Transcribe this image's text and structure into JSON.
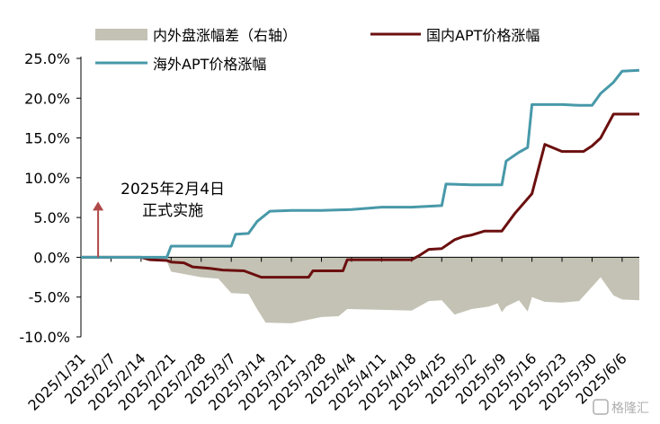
{
  "chart_data": {
    "type": "line",
    "title": "",
    "xlabel": "",
    "ylabel": "",
    "ylim": [
      -10,
      25
    ],
    "yticks": [
      -10,
      -5,
      0,
      5,
      10,
      15,
      20,
      25
    ],
    "ytick_labels": [
      "-10.0%",
      "-5.0%",
      "0.0%",
      "5.0%",
      "10.0%",
      "15.0%",
      "20.0%",
      "25.0%"
    ],
    "x_tick_labels": [
      "2025/1/31",
      "2025/2/7",
      "2025/2/14",
      "2025/2/21",
      "2025/2/28",
      "2025/3/7",
      "2025/3/14",
      "2025/3/21",
      "2025/3/28",
      "2025/4/4",
      "2025/4/11",
      "2025/4/18",
      "2025/4/25",
      "2025/5/2",
      "2025/5/9",
      "2025/5/16",
      "2025/5/23",
      "2025/5/30",
      "2025/6/6"
    ],
    "grid": false,
    "legend_position": "top",
    "series": [
      {
        "name": "内外盘涨幅差（右轴）",
        "kind": "area",
        "color": "#c4c2b4",
        "points": [
          [
            "2025/1/31",
            0
          ],
          [
            "2025/2/14",
            0
          ],
          [
            "2025/2/17",
            -0.3
          ],
          [
            "2025/2/20",
            -0.5
          ],
          [
            "2025/2/21",
            -1.8
          ],
          [
            "2025/2/28",
            -2.5
          ],
          [
            "2025/3/4",
            -2.7
          ],
          [
            "2025/3/7",
            -4.5
          ],
          [
            "2025/3/11",
            -4.6
          ],
          [
            "2025/3/13",
            -6.5
          ],
          [
            "2025/3/15",
            -8.2
          ],
          [
            "2025/3/21",
            -8.3
          ],
          [
            "2025/3/28",
            -7.5
          ],
          [
            "2025/4/1",
            -7.4
          ],
          [
            "2025/4/3",
            -6.5
          ],
          [
            "2025/4/11",
            -6.6
          ],
          [
            "2025/4/18",
            -6.7
          ],
          [
            "2025/4/22",
            -5.5
          ],
          [
            "2025/4/25",
            -5.4
          ],
          [
            "2025/4/28",
            -7.2
          ],
          [
            "2025/5/2",
            -6.5
          ],
          [
            "2025/5/6",
            -6.2
          ],
          [
            "2025/5/8",
            -5.8
          ],
          [
            "2025/5/9",
            -6.9
          ],
          [
            "2025/5/10",
            -6.2
          ],
          [
            "2025/5/13",
            -5.4
          ],
          [
            "2025/5/15",
            -6.8
          ],
          [
            "2025/5/16",
            -5.0
          ],
          [
            "2025/5/19",
            -5.6
          ],
          [
            "2025/5/23",
            -5.7
          ],
          [
            "2025/5/27",
            -5.5
          ],
          [
            "2025/5/29",
            -4.3
          ],
          [
            "2025/6/1",
            -2.5
          ],
          [
            "2025/6/4",
            -4.8
          ],
          [
            "2025/6/6",
            -5.3
          ],
          [
            "2025/6/10",
            -5.4
          ]
        ]
      },
      {
        "name": "国内APT价格涨幅",
        "kind": "line",
        "color": "#6b0f0f",
        "points": [
          [
            "2025/1/31",
            0
          ],
          [
            "2025/2/14",
            0
          ],
          [
            "2025/2/16",
            -0.3
          ],
          [
            "2025/2/20",
            -0.4
          ],
          [
            "2025/2/21",
            -0.6
          ],
          [
            "2025/2/24",
            -0.7
          ],
          [
            "2025/2/26",
            -1.2
          ],
          [
            "2025/3/2",
            -1.4
          ],
          [
            "2025/3/5",
            -1.6
          ],
          [
            "2025/3/10",
            -1.7
          ],
          [
            "2025/3/14",
            -2.5
          ],
          [
            "2025/3/21",
            -2.5
          ],
          [
            "2025/3/25",
            -2.5
          ],
          [
            "2025/3/26",
            -1.7
          ],
          [
            "2025/4/2",
            -1.7
          ],
          [
            "2025/4/3",
            -0.3
          ],
          [
            "2025/4/18",
            -0.3
          ],
          [
            "2025/4/20",
            0.3
          ],
          [
            "2025/4/22",
            1.0
          ],
          [
            "2025/4/25",
            1.1
          ],
          [
            "2025/4/28",
            2.2
          ],
          [
            "2025/4/30",
            2.6
          ],
          [
            "2025/5/2",
            2.8
          ],
          [
            "2025/5/5",
            3.3
          ],
          [
            "2025/5/9",
            3.3
          ],
          [
            "2025/5/12",
            5.5
          ],
          [
            "2025/5/16",
            8.0
          ],
          [
            "2025/5/19",
            14.2
          ],
          [
            "2025/5/23",
            13.3
          ],
          [
            "2025/5/28",
            13.3
          ],
          [
            "2025/5/30",
            14.0
          ],
          [
            "2025/6/1",
            15.0
          ],
          [
            "2025/6/4",
            18.0
          ],
          [
            "2025/6/10",
            18.0
          ]
        ]
      },
      {
        "name": "海外APT价格涨幅",
        "kind": "line",
        "color": "#4899a9",
        "points": [
          [
            "2025/1/31",
            0
          ],
          [
            "2025/2/20",
            0
          ],
          [
            "2025/2/21",
            1.4
          ],
          [
            "2025/3/7",
            1.4
          ],
          [
            "2025/3/8",
            2.9
          ],
          [
            "2025/3/11",
            3.0
          ],
          [
            "2025/3/13",
            4.5
          ],
          [
            "2025/3/16",
            5.8
          ],
          [
            "2025/3/21",
            5.9
          ],
          [
            "2025/3/28",
            5.9
          ],
          [
            "2025/4/4",
            6.0
          ],
          [
            "2025/4/11",
            6.3
          ],
          [
            "2025/4/18",
            6.3
          ],
          [
            "2025/4/25",
            6.5
          ],
          [
            "2025/4/26",
            9.2
          ],
          [
            "2025/5/2",
            9.1
          ],
          [
            "2025/5/9",
            9.1
          ],
          [
            "2025/5/10",
            12.1
          ],
          [
            "2025/5/13",
            13.2
          ],
          [
            "2025/5/15",
            13.8
          ],
          [
            "2025/5/16",
            19.2
          ],
          [
            "2025/5/23",
            19.2
          ],
          [
            "2025/5/27",
            19.1
          ],
          [
            "2025/5/30",
            19.1
          ],
          [
            "2025/6/1",
            20.6
          ],
          [
            "2025/6/4",
            22.0
          ],
          [
            "2025/6/6",
            23.4
          ],
          [
            "2025/6/10",
            23.5
          ]
        ]
      }
    ],
    "annotations": [
      {
        "lines": [
          "2025年2月4日",
          "正式实施"
        ],
        "x": "2025/2/4",
        "arrow_from_y": 0,
        "arrow_to_y": 7
      }
    ]
  },
  "watermark": {
    "text": "格隆汇"
  }
}
